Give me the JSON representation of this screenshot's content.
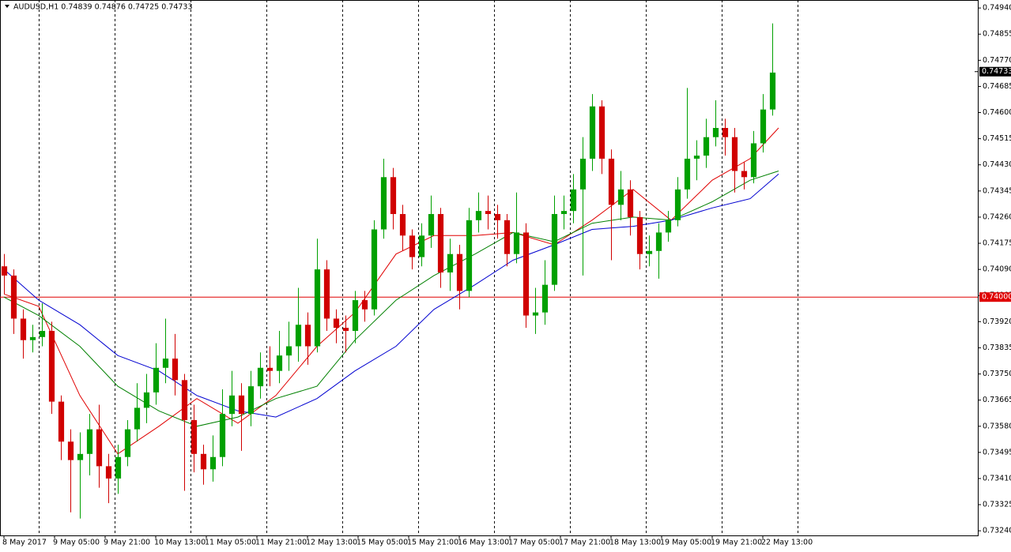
{
  "chart_data": {
    "type": "candlestick",
    "header": "AUDUSD,H1  0.74839 0.74876 0.74725 0.74733",
    "up_color": "#00a000",
    "down_color": "#d00000",
    "xlim": [
      -1.25,
      308
    ],
    "ylim": [
      0.73225,
      0.74966
    ],
    "x": [
      0,
      3,
      6,
      9,
      12,
      15,
      18,
      21,
      24,
      27,
      30,
      33,
      36,
      39,
      42,
      45,
      48,
      51,
      54,
      57,
      60,
      63,
      66,
      69,
      72,
      75,
      78,
      81,
      84,
      87,
      90,
      93,
      96,
      99,
      102,
      105,
      108,
      111,
      114,
      117,
      120,
      123,
      126,
      129,
      132,
      135,
      138,
      141,
      144,
      147,
      150,
      153,
      156,
      159,
      162,
      165,
      168,
      171,
      174,
      177,
      180,
      183,
      186,
      189,
      192,
      195,
      198,
      201,
      204,
      207,
      210,
      213,
      216,
      219,
      222,
      225,
      228,
      231,
      234,
      237,
      240,
      243
    ],
    "candles": [
      [
        0.741,
        0.7414,
        0.7401,
        0.7407
      ],
      [
        0.7407,
        0.7409,
        0.7388,
        0.7393
      ],
      [
        0.7393,
        0.7396,
        0.738,
        0.7386
      ],
      [
        0.7386,
        0.7391,
        0.7382,
        0.7387
      ],
      [
        0.7387,
        0.7398,
        0.7384,
        0.7389
      ],
      [
        0.7389,
        0.7392,
        0.7362,
        0.7366
      ],
      [
        0.7366,
        0.7368,
        0.7347,
        0.7353
      ],
      [
        0.7353,
        0.7357,
        0.733,
        0.7347
      ],
      [
        0.7347,
        0.7356,
        0.7328,
        0.7349
      ],
      [
        0.7349,
        0.7362,
        0.7342,
        0.7357
      ],
      [
        0.7357,
        0.7365,
        0.7338,
        0.7345
      ],
      [
        0.7345,
        0.7349,
        0.7333,
        0.7341
      ],
      [
        0.7341,
        0.7352,
        0.7336,
        0.7348
      ],
      [
        0.7348,
        0.736,
        0.7345,
        0.7357
      ],
      [
        0.7357,
        0.7372,
        0.7353,
        0.7364
      ],
      [
        0.7364,
        0.7375,
        0.7359,
        0.7369
      ],
      [
        0.7369,
        0.7385,
        0.7365,
        0.7377
      ],
      [
        0.7377,
        0.7393,
        0.7372,
        0.738
      ],
      [
        0.738,
        0.7388,
        0.7368,
        0.7373
      ],
      [
        0.7373,
        0.7375,
        0.7337,
        0.736
      ],
      [
        0.736,
        0.7365,
        0.7343,
        0.7349
      ],
      [
        0.7349,
        0.7352,
        0.7339,
        0.7344
      ],
      [
        0.7344,
        0.7355,
        0.734,
        0.7348
      ],
      [
        0.7348,
        0.737,
        0.7345,
        0.7362
      ],
      [
        0.7362,
        0.7376,
        0.7358,
        0.7368
      ],
      [
        0.7368,
        0.7372,
        0.735,
        0.7362
      ],
      [
        0.7362,
        0.7376,
        0.7358,
        0.7371
      ],
      [
        0.7371,
        0.7382,
        0.7367,
        0.7377
      ],
      [
        0.7377,
        0.7384,
        0.7371,
        0.7376
      ],
      [
        0.7376,
        0.7389,
        0.7372,
        0.7381
      ],
      [
        0.7381,
        0.7392,
        0.7376,
        0.7384
      ],
      [
        0.7384,
        0.7403,
        0.7379,
        0.7391
      ],
      [
        0.7391,
        0.7395,
        0.7378,
        0.7384
      ],
      [
        0.7384,
        0.7419,
        0.7382,
        0.7409
      ],
      [
        0.7409,
        0.7412,
        0.7389,
        0.7393
      ],
      [
        0.7393,
        0.7396,
        0.7385,
        0.739
      ],
      [
        0.739,
        0.7394,
        0.7382,
        0.7389
      ],
      [
        0.7389,
        0.7402,
        0.7385,
        0.7399
      ],
      [
        0.7399,
        0.7402,
        0.7392,
        0.7396
      ],
      [
        0.7396,
        0.7425,
        0.7394,
        0.7422
      ],
      [
        0.7422,
        0.7445,
        0.7419,
        0.7439
      ],
      [
        0.7439,
        0.7442,
        0.7422,
        0.7427
      ],
      [
        0.7427,
        0.743,
        0.7415,
        0.742
      ],
      [
        0.742,
        0.7422,
        0.7409,
        0.7413
      ],
      [
        0.7413,
        0.7424,
        0.741,
        0.742
      ],
      [
        0.742,
        0.7433,
        0.7416,
        0.7427
      ],
      [
        0.7427,
        0.7429,
        0.7403,
        0.7408
      ],
      [
        0.7408,
        0.7419,
        0.7402,
        0.7414
      ],
      [
        0.7414,
        0.7417,
        0.7396,
        0.7402
      ],
      [
        0.7402,
        0.7429,
        0.74,
        0.7425
      ],
      [
        0.7425,
        0.7434,
        0.7421,
        0.7428
      ],
      [
        0.7428,
        0.7433,
        0.7422,
        0.7427
      ],
      [
        0.7427,
        0.743,
        0.7419,
        0.7425
      ],
      [
        0.7425,
        0.7427,
        0.741,
        0.7414
      ],
      [
        0.7414,
        0.7434,
        0.7411,
        0.7421
      ],
      [
        0.7421,
        0.7424,
        0.739,
        0.7394
      ],
      [
        0.7394,
        0.7403,
        0.7388,
        0.7395
      ],
      [
        0.7395,
        0.7412,
        0.7391,
        0.7404
      ],
      [
        0.7404,
        0.7433,
        0.7402,
        0.7427
      ],
      [
        0.7427,
        0.7433,
        0.7422,
        0.7428
      ],
      [
        0.7428,
        0.744,
        0.7424,
        0.7435
      ],
      [
        0.7435,
        0.7452,
        0.7407,
        0.7445
      ],
      [
        0.7445,
        0.7466,
        0.7441,
        0.7462
      ],
      [
        0.7462,
        0.7464,
        0.744,
        0.7445
      ],
      [
        0.7445,
        0.7448,
        0.7412,
        0.743
      ],
      [
        0.743,
        0.7441,
        0.7425,
        0.7435
      ],
      [
        0.7435,
        0.7438,
        0.742,
        0.7426
      ],
      [
        0.7426,
        0.7428,
        0.7409,
        0.7414
      ],
      [
        0.7414,
        0.742,
        0.741,
        0.7415
      ],
      [
        0.7415,
        0.7424,
        0.7406,
        0.7421
      ],
      [
        0.7421,
        0.7428,
        0.7418,
        0.7425
      ],
      [
        0.7425,
        0.7439,
        0.7423,
        0.7435
      ],
      [
        0.7435,
        0.7468,
        0.7432,
        0.7445
      ],
      [
        0.7445,
        0.7451,
        0.7438,
        0.7446
      ],
      [
        0.7446,
        0.7458,
        0.7442,
        0.7452
      ],
      [
        0.7452,
        0.7464,
        0.7449,
        0.7455
      ],
      [
        0.7455,
        0.7458,
        0.7446,
        0.7452
      ],
      [
        0.7452,
        0.7455,
        0.7434,
        0.7441
      ],
      [
        0.7441,
        0.7444,
        0.7435,
        0.7439
      ],
      [
        0.7439,
        0.7454,
        0.7437,
        0.745
      ],
      [
        0.745,
        0.7466,
        0.7447,
        0.7461
      ],
      [
        0.7461,
        0.7489,
        0.7459,
        0.7473
      ]
    ],
    "lines": [
      {
        "color": "#e00000",
        "x": [
          0,
          11,
          24,
          36,
          49,
          61,
          74,
          86,
          99,
          111,
          124,
          136,
          149,
          161,
          174,
          186,
          199,
          211,
          224,
          236,
          245
        ],
        "values": [
          0.7401,
          0.7397,
          0.7368,
          0.7349,
          0.7358,
          0.7367,
          0.7359,
          0.7368,
          0.7384,
          0.7395,
          0.7414,
          0.742,
          0.742,
          0.7421,
          0.7417,
          0.7425,
          0.7435,
          0.7425,
          0.7438,
          0.7445,
          0.7455
        ]
      },
      {
        "color": "#008000",
        "x": [
          0,
          11,
          24,
          36,
          49,
          61,
          74,
          86,
          99,
          111,
          124,
          136,
          149,
          161,
          174,
          186,
          199,
          211,
          224,
          236,
          245
        ],
        "values": [
          0.74,
          0.7394,
          0.7384,
          0.7371,
          0.7363,
          0.7358,
          0.7361,
          0.7367,
          0.7371,
          0.7386,
          0.7399,
          0.7407,
          0.7414,
          0.7421,
          0.7418,
          0.7424,
          0.7426,
          0.7425,
          0.7431,
          0.7438,
          0.7441
        ]
      },
      {
        "color": "#0000d0",
        "x": [
          0,
          11,
          24,
          36,
          49,
          61,
          74,
          86,
          99,
          111,
          124,
          136,
          149,
          161,
          174,
          186,
          199,
          211,
          224,
          236,
          245
        ],
        "values": [
          0.7409,
          0.7399,
          0.7391,
          0.7381,
          0.7376,
          0.7368,
          0.7363,
          0.7361,
          0.7367,
          0.7376,
          0.7384,
          0.7396,
          0.7404,
          0.7412,
          0.7417,
          0.7422,
          0.7423,
          0.7425,
          0.7429,
          0.7432,
          0.744
        ]
      }
    ],
    "level": {
      "value": 0.74,
      "label": "0.74000",
      "color": "#e00000"
    },
    "last": {
      "value": 0.74733,
      "label": "0.74733"
    },
    "separators": [
      11,
      35,
      59,
      83,
      107,
      131,
      155,
      179,
      203,
      227,
      251
    ],
    "yticks": [
      {
        "value": 0.7494,
        "label": "0.74940"
      },
      {
        "value": 0.74855,
        "label": "0.74855"
      },
      {
        "value": 0.7477,
        "label": "0.74770"
      },
      {
        "value": 0.74685,
        "label": "0.74685"
      },
      {
        "value": 0.746,
        "label": "0.74600"
      },
      {
        "value": 0.74515,
        "label": "0.74515"
      },
      {
        "value": 0.7443,
        "label": "0.74430"
      },
      {
        "value": 0.74345,
        "label": "0.74345"
      },
      {
        "value": 0.7426,
        "label": "0.74260"
      },
      {
        "value": 0.74175,
        "label": "0.74175"
      },
      {
        "value": 0.7409,
        "label": "0.74090"
      },
      {
        "value": 0.74005,
        "label": "0.74005"
      },
      {
        "value": 0.7392,
        "label": "0.73920"
      },
      {
        "value": 0.73835,
        "label": "0.73835"
      },
      {
        "value": 0.7375,
        "label": "0.73750"
      },
      {
        "value": 0.73665,
        "label": "0.73665"
      },
      {
        "value": 0.7358,
        "label": "0.73580"
      },
      {
        "value": 0.73495,
        "label": "0.73495"
      },
      {
        "value": 0.7341,
        "label": "0.73410"
      },
      {
        "value": 0.73325,
        "label": "0.73325"
      },
      {
        "value": 0.7324,
        "label": "0.73240"
      }
    ],
    "xticks": [
      {
        "value": 0,
        "label": "8 May 2017"
      },
      {
        "value": 16,
        "label": "9 May 05:00"
      },
      {
        "value": 32,
        "label": "9 May 21:00"
      },
      {
        "value": 48,
        "label": "10 May 13:00"
      },
      {
        "value": 64,
        "label": "11 May 05:00"
      },
      {
        "value": 80,
        "label": "11 May 21:00"
      },
      {
        "value": 96,
        "label": "12 May 13:00"
      },
      {
        "value": 112,
        "label": "15 May 05:00"
      },
      {
        "value": 128,
        "label": "15 May 21:00"
      },
      {
        "value": 144,
        "label": "16 May 13:00"
      },
      {
        "value": 160,
        "label": "17 May 05:00"
      },
      {
        "value": 176,
        "label": "17 May 21:00"
      },
      {
        "value": 192,
        "label": "18 May 13:00"
      },
      {
        "value": 208,
        "label": "19 May 05:00"
      },
      {
        "value": 224,
        "label": "19 May 21:00"
      },
      {
        "value": 240,
        "label": "22 May 13:00"
      }
    ]
  }
}
